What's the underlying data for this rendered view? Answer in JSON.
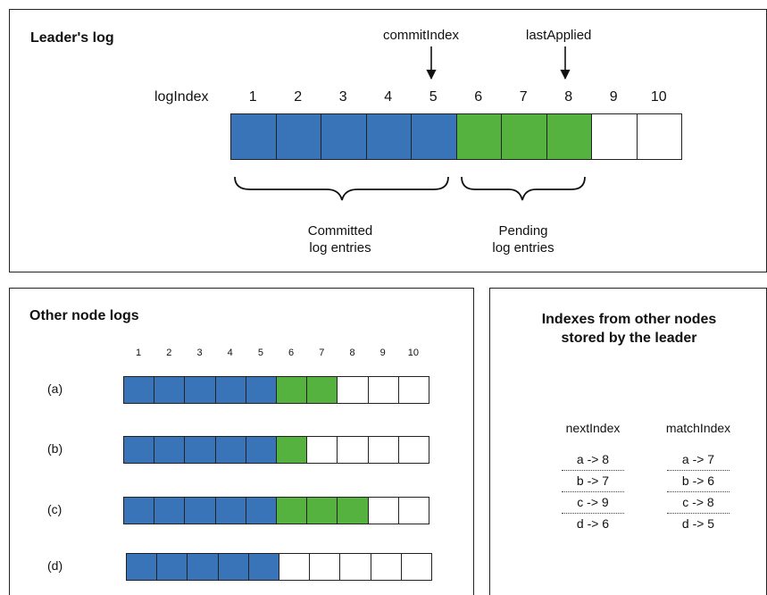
{
  "colors": {
    "committed": "#3974b8",
    "pending": "#56b23e",
    "empty": "#ffffff",
    "border": "#222222"
  },
  "leader": {
    "title": "Leader's log",
    "index_label": "logIndex",
    "indices": [
      "1",
      "2",
      "3",
      "4",
      "5",
      "6",
      "7",
      "8",
      "9",
      "10"
    ],
    "entries": [
      "committed",
      "committed",
      "committed",
      "committed",
      "committed",
      "pending",
      "pending",
      "pending",
      "empty",
      "empty"
    ],
    "commit_label": "commitIndex",
    "commit_at": 5,
    "applied_label": "lastApplied",
    "applied_at": 8,
    "committed_caption": [
      "Committed",
      "log entries"
    ],
    "pending_caption": [
      "Pending",
      "log entries"
    ]
  },
  "others": {
    "title": "Other node logs",
    "indices": [
      "1",
      "2",
      "3",
      "4",
      "5",
      "6",
      "7",
      "8",
      "9",
      "10"
    ],
    "rows": [
      {
        "label": "(a)",
        "entries": [
          "committed",
          "committed",
          "committed",
          "committed",
          "committed",
          "pending",
          "pending",
          "empty",
          "empty",
          "empty"
        ]
      },
      {
        "label": "(b)",
        "entries": [
          "committed",
          "committed",
          "committed",
          "committed",
          "committed",
          "pending",
          "empty",
          "empty",
          "empty",
          "empty"
        ]
      },
      {
        "label": "(c)",
        "entries": [
          "committed",
          "committed",
          "committed",
          "committed",
          "committed",
          "pending",
          "pending",
          "pending",
          "empty",
          "empty"
        ]
      },
      {
        "label": "(d)",
        "entries": [
          "committed",
          "committed",
          "committed",
          "committed",
          "committed",
          "empty",
          "empty",
          "empty",
          "empty",
          "empty"
        ]
      }
    ]
  },
  "indexes": {
    "title": [
      "Indexes from other nodes",
      "stored by the leader"
    ],
    "next_header": "nextIndex",
    "match_header": "matchIndex",
    "next": [
      "a -> 8",
      "b -> 7",
      "c -> 9",
      "d -> 6"
    ],
    "match": [
      "a -> 7",
      "b -> 6",
      "c -> 8",
      "d -> 5"
    ]
  }
}
